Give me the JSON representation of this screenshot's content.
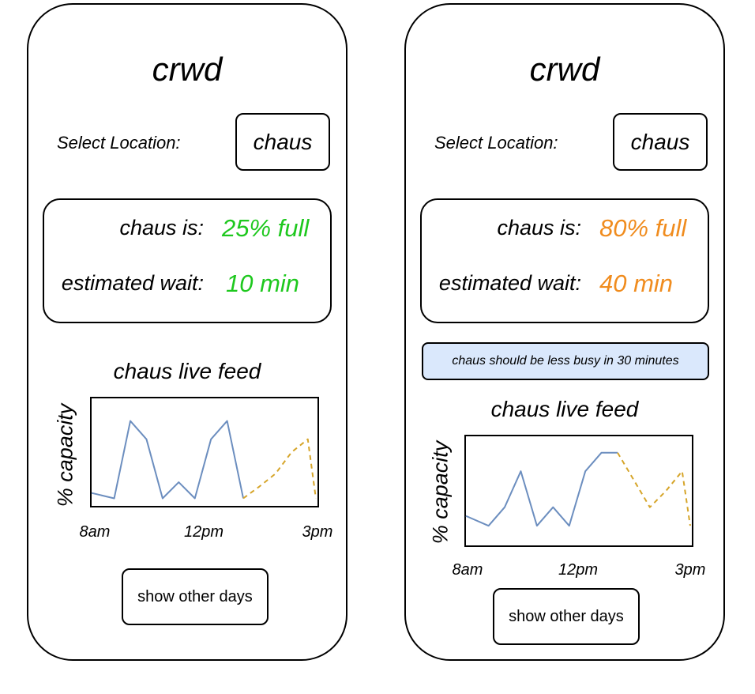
{
  "screens": [
    {
      "app_title": "crwd",
      "select_label": "Select Location:",
      "location_value": "chaus",
      "status_label": "chaus is:",
      "status_value": "25% full",
      "wait_label": "estimated wait:",
      "wait_value": "10 min",
      "accent_color": "#1ec81e",
      "feed_title": "chaus live feed",
      "button_label": "show other days",
      "chart_data": {
        "type": "line",
        "title": "chaus live feed",
        "ylabel": "% capacity",
        "xlabel": "",
        "x_ticks": [
          "8am",
          "12pm",
          "3pm"
        ],
        "x_range": [
          8,
          15
        ],
        "ylim": [
          0,
          100
        ],
        "series": [
          {
            "style": "solid",
            "color": "#6c8ebf",
            "x": [
              8,
              8.7,
              9.2,
              9.7,
              10.2,
              10.7,
              11.2,
              11.7,
              12.2,
              12.7
            ],
            "y": [
              12,
              7,
              79,
              62,
              7,
              22,
              7,
              62,
              79,
              7
            ]
          },
          {
            "style": "dashed",
            "color": "#d6a52a",
            "x": [
              12.7,
              13.2,
              13.7,
              14.2,
              14.7,
              14.95
            ],
            "y": [
              7,
              18,
              30,
              50,
              62,
              7
            ]
          }
        ]
      }
    },
    {
      "app_title": "crwd",
      "select_label": "Select Location:",
      "location_value": "chaus",
      "status_label": "chaus is:",
      "status_value": "80% full",
      "wait_label": "estimated wait:",
      "wait_value": "40 min",
      "accent_color": "#f08c1e",
      "tip_text": "chaus should be less busy in 30 minutes",
      "feed_title": "chaus live feed",
      "button_label": "show other days",
      "chart_data": {
        "type": "line",
        "title": "chaus live feed",
        "ylabel": "% capacity",
        "xlabel": "",
        "x_ticks": [
          "8am",
          "12pm",
          "3pm"
        ],
        "x_range": [
          8,
          15
        ],
        "ylim": [
          0,
          100
        ],
        "series": [
          {
            "style": "solid",
            "color": "#6c8ebf",
            "x": [
              8,
              8.7,
              9.2,
              9.7,
              10.2,
              10.7,
              11.2,
              11.7,
              12.2,
              12.7
            ],
            "y": [
              27,
              18,
              35,
              68,
              18,
              35,
              18,
              68,
              85,
              85
            ]
          },
          {
            "style": "dashed",
            "color": "#d6a52a",
            "x": [
              12.7,
              13.2,
              13.7,
              14.2,
              14.7,
              14.95
            ],
            "y": [
              85,
              60,
              35,
              50,
              68,
              18
            ]
          }
        ]
      }
    }
  ]
}
